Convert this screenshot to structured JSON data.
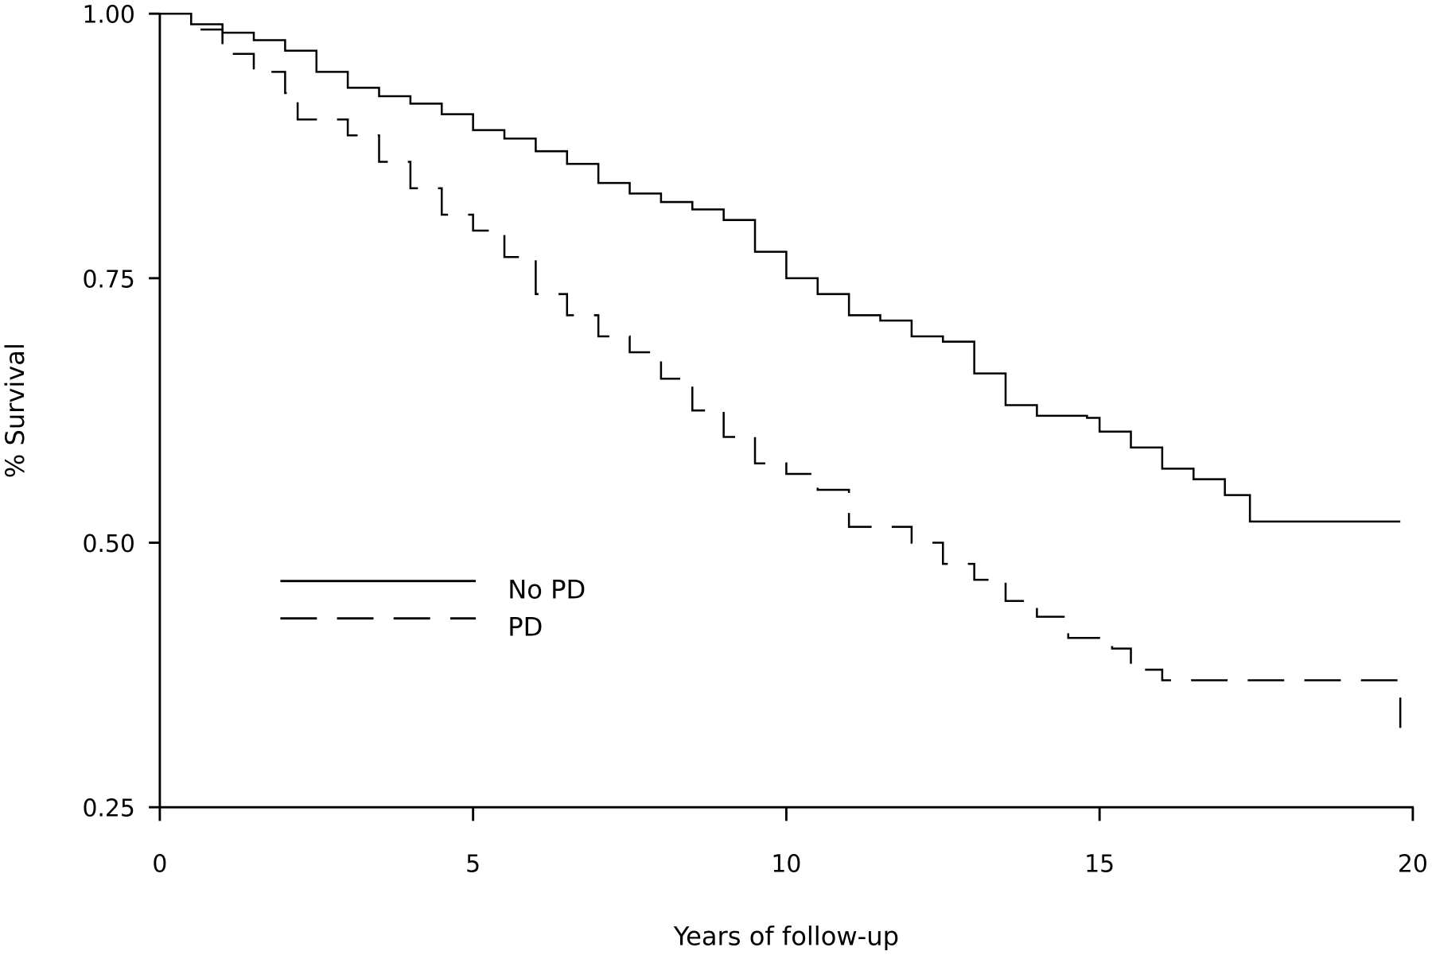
{
  "chart_data": {
    "type": "line",
    "title": "",
    "xlabel": "Years of follow-up",
    "ylabel": "% Survival",
    "xlim": [
      0,
      20
    ],
    "ylim": [
      0.25,
      1.0
    ],
    "xticks": [
      "0",
      "5",
      "10",
      "15",
      "20"
    ],
    "xtick_values": [
      0,
      5,
      10,
      15,
      20
    ],
    "yticks": [
      "0.25",
      "0.50",
      "0.75",
      "1.00"
    ],
    "ytick_values": [
      0.25,
      0.5,
      0.75,
      1.0
    ],
    "grid": false,
    "legend_placement": "center-left",
    "series": [
      {
        "name": "No PD",
        "style": "solid",
        "step": true,
        "x": [
          0,
          0.5,
          1,
          1.5,
          2,
          2.5,
          3,
          3.5,
          4,
          4.5,
          5,
          5.5,
          6,
          6.5,
          7,
          7.5,
          8,
          8.5,
          9,
          9.5,
          10,
          10.5,
          11,
          11.5,
          12,
          12.5,
          13,
          13.5,
          14,
          14.8,
          15,
          15.5,
          16,
          16.5,
          17,
          17.4,
          19.8
        ],
        "y": [
          1.0,
          0.99,
          0.982,
          0.975,
          0.965,
          0.945,
          0.93,
          0.922,
          0.915,
          0.905,
          0.89,
          0.882,
          0.87,
          0.858,
          0.84,
          0.83,
          0.822,
          0.815,
          0.805,
          0.775,
          0.75,
          0.735,
          0.715,
          0.71,
          0.695,
          0.69,
          0.66,
          0.63,
          0.62,
          0.618,
          0.605,
          0.59,
          0.57,
          0.56,
          0.545,
          0.52,
          0.52
        ]
      },
      {
        "name": "PD",
        "style": "dashed",
        "step": true,
        "x": [
          0,
          0.5,
          1,
          1.5,
          2,
          2.2,
          3,
          3.5,
          4,
          4.5,
          5,
          5.5,
          6,
          6.5,
          7,
          7.5,
          8,
          8.5,
          9,
          9.5,
          10,
          10.5,
          11,
          12,
          12.5,
          13,
          13.5,
          14,
          14.5,
          15.2,
          15.5,
          16,
          19.8,
          19.8
        ],
        "y": [
          1.0,
          0.985,
          0.962,
          0.945,
          0.925,
          0.9,
          0.885,
          0.86,
          0.835,
          0.81,
          0.795,
          0.77,
          0.735,
          0.715,
          0.695,
          0.68,
          0.655,
          0.625,
          0.6,
          0.575,
          0.565,
          0.55,
          0.515,
          0.5,
          0.48,
          0.465,
          0.445,
          0.43,
          0.41,
          0.4,
          0.38,
          0.37,
          0.37,
          0.325
        ]
      }
    ]
  }
}
